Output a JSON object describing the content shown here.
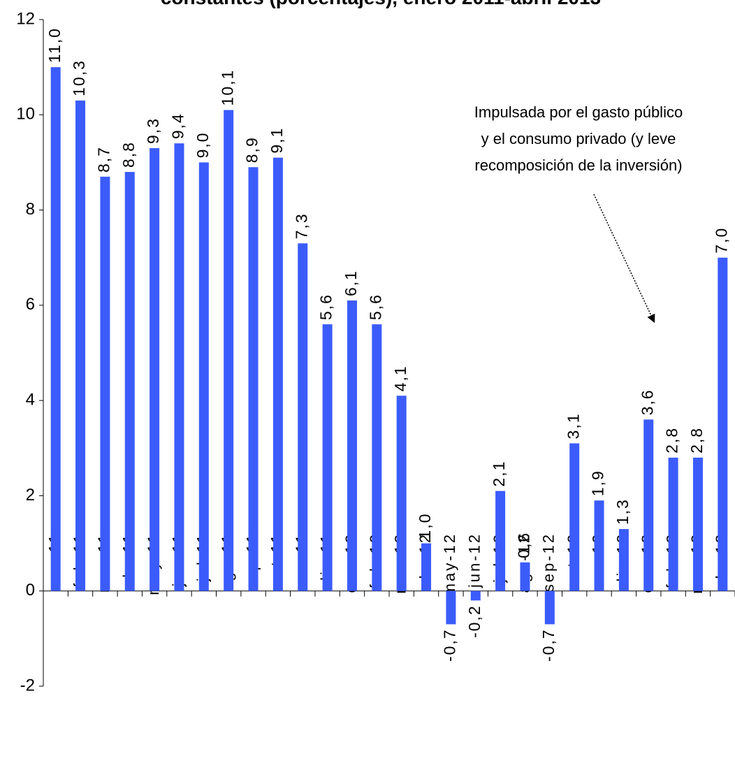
{
  "chart_data": {
    "type": "bar",
    "title": "constantes (porcentajes), enero 2011-abril 2013",
    "categories": [
      "ene-11",
      "feb-11",
      "mar-11",
      "abr-11",
      "may-11",
      "jun-11",
      "jul-11",
      "ago-11",
      "sep-11",
      "oct-11",
      "nov-11",
      "dic-11",
      "ene-12",
      "feb-12",
      "mar-12",
      "abr-12",
      "may-12",
      "jun-12",
      "jul-12",
      "ago-12",
      "sep-12",
      "oct-12",
      "nov-12",
      "dic-12",
      "ene-13",
      "feb-13",
      "mar-13",
      "abr-13"
    ],
    "values": [
      11.0,
      10.3,
      8.7,
      8.8,
      9.3,
      9.4,
      9.0,
      10.1,
      8.9,
      9.1,
      7.3,
      5.6,
      6.1,
      5.6,
      4.1,
      1.0,
      -0.7,
      -0.2,
      2.1,
      0.6,
      -0.7,
      3.1,
      1.9,
      1.3,
      3.6,
      2.8,
      2.8,
      7.0
    ],
    "value_labels": [
      "11,0",
      "10,3",
      "8,7",
      "8,8",
      "9,3",
      "9,4",
      "9,0",
      "10,1",
      "8,9",
      "9,1",
      "7,3",
      "5,6",
      "6,1",
      "5,6",
      "4,1",
      "1,0",
      "-0,7",
      "-0,2",
      "2,1",
      "0,6",
      "-0,7",
      "3,1",
      "1,9",
      "1,3",
      "3,6",
      "2,8",
      "2,8",
      "7,0"
    ],
    "color": "#3b5cfb",
    "ylim": [
      -2,
      12
    ],
    "yticks": [
      -2,
      0,
      2,
      4,
      6,
      8,
      10,
      12
    ],
    "annotation": [
      "Impulsada por el gasto público",
      "y el consumo privado (y leve",
      "recomposición de la inversión)"
    ]
  }
}
